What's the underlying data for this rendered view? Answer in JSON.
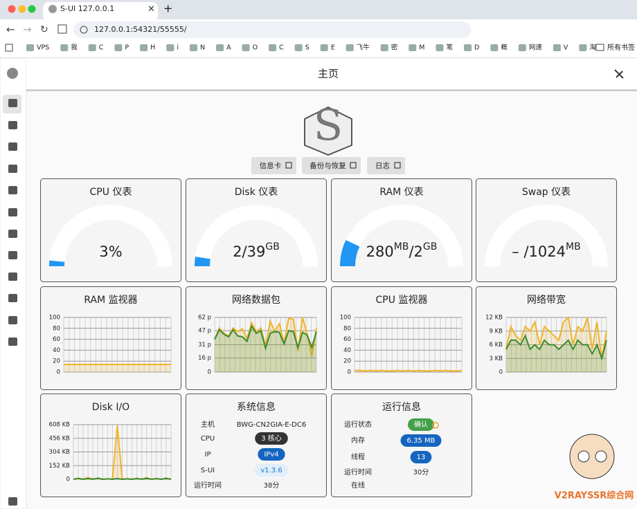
{
  "browser": {
    "tab_title": "S-UI 127.0.0.1",
    "url": "127.0.0.1:54321/55555/",
    "bookmarks": [
      "VPS",
      "我",
      "C",
      "P",
      "H",
      "i",
      "N",
      "A",
      "O",
      "C",
      "S",
      "E",
      "飞牛",
      "密",
      "M",
      "笔",
      "D",
      "概",
      "网速",
      "V",
      "淘"
    ],
    "all_bookmarks": "所有书签"
  },
  "header": {
    "title": "主页"
  },
  "buttons": [
    "信息卡",
    "备份与恢复",
    "日志"
  ],
  "gauges": [
    {
      "title": "CPU 仪表",
      "parts": [
        {
          "text": "3%"
        }
      ],
      "fill": 3
    },
    {
      "title": "Disk 仪表",
      "parts": [
        {
          "text": "2/39"
        },
        {
          "sup": "GB"
        }
      ],
      "fill": 5
    },
    {
      "title": "RAM 仪表",
      "parts": [
        {
          "text": "280"
        },
        {
          "sup": "MB"
        },
        {
          "text": "/2"
        },
        {
          "sup": "GB"
        }
      ],
      "fill": 14
    },
    {
      "title": "Swap 仪表",
      "parts": [
        {
          "text": "– /1024"
        },
        {
          "sup": "MB"
        }
      ],
      "fill": 0
    }
  ],
  "chart_data": [
    {
      "type": "line",
      "title": "RAM 监视器",
      "ylim": [
        0,
        100
      ],
      "yticks": [
        0,
        20,
        40,
        60,
        80,
        100
      ],
      "grid": true,
      "series": [
        {
          "color": "#f0b429",
          "values": [
            14,
            14,
            14,
            14,
            14,
            14,
            14,
            14,
            14,
            14,
            14,
            14,
            14,
            14,
            14,
            14,
            14,
            14,
            14,
            14,
            14
          ]
        }
      ]
    },
    {
      "type": "line",
      "title": "网络数据包",
      "ylim": [
        0,
        62
      ],
      "yticks": [
        0,
        {
          "value": 16,
          "label": "16 p"
        },
        {
          "value": 31,
          "label": "31 p"
        },
        {
          "value": 47,
          "label": "47 p"
        },
        {
          "value": 62,
          "label": "62 p"
        }
      ],
      "grid": true,
      "series": [
        {
          "color": "#f0b429",
          "values": [
            37,
            50,
            44,
            41,
            50,
            46,
            49,
            38,
            56,
            46,
            50,
            29,
            58,
            46,
            55,
            33,
            61,
            60,
            24,
            62,
            43,
            18,
            50
          ]
        },
        {
          "color": "#3a8a2e",
          "values": [
            37,
            48,
            43,
            40,
            48,
            41,
            40,
            35,
            52,
            44,
            47,
            27,
            44,
            46,
            45,
            32,
            47,
            46,
            28,
            45,
            42,
            28,
            46
          ]
        }
      ]
    },
    {
      "type": "line",
      "title": "CPU 监视器",
      "ylim": [
        0,
        100
      ],
      "yticks": [
        0,
        20,
        40,
        60,
        80,
        100
      ],
      "grid": true,
      "series": [
        {
          "color": "#f0b429",
          "values": [
            3,
            3,
            2,
            3,
            2,
            3,
            2,
            2,
            3,
            2,
            3,
            2,
            3,
            2,
            2,
            3,
            2,
            3,
            2,
            2,
            3
          ]
        }
      ]
    },
    {
      "type": "line",
      "title": "网络带宽",
      "ylim": [
        0,
        12
      ],
      "yticks": [
        0,
        {
          "value": 3,
          "label": "3 KB"
        },
        {
          "value": 6,
          "label": "6 KB"
        },
        {
          "value": 9,
          "label": "9 KB"
        },
        {
          "value": 12,
          "label": "12 KB"
        }
      ],
      "grid": true,
      "series": [
        {
          "color": "#f0b429",
          "values": [
            5,
            10,
            8,
            7,
            10,
            9,
            11,
            6,
            10,
            9,
            8,
            7,
            11,
            12,
            6,
            10,
            9,
            12,
            5,
            11,
            3,
            9
          ]
        },
        {
          "color": "#3a8a2e",
          "values": [
            5,
            7,
            7,
            6,
            8,
            5,
            6,
            5,
            7,
            6,
            6,
            5,
            6,
            7,
            5,
            7,
            6,
            6,
            4,
            6,
            3,
            7
          ]
        }
      ]
    },
    {
      "type": "line",
      "title": "Disk I/O",
      "ylim": [
        0,
        608
      ],
      "yticks": [
        0,
        {
          "value": 152,
          "label": "152 KB"
        },
        {
          "value": 304,
          "label": "304 KB"
        },
        {
          "value": 456,
          "label": "456 KB"
        },
        {
          "value": 608,
          "label": "608 KB"
        }
      ],
      "grid": true,
      "series": [
        {
          "color": "#f0b429",
          "values": [
            0,
            5,
            0,
            20,
            0,
            8,
            0,
            5,
            0,
            600,
            0,
            5,
            0,
            10,
            0,
            18,
            0,
            8,
            0,
            12,
            0
          ]
        },
        {
          "color": "#3a8a2e",
          "values": [
            0,
            10,
            0,
            8,
            0,
            12,
            0,
            5,
            0,
            8,
            0,
            5,
            0,
            8,
            0,
            10,
            0,
            8,
            0,
            10,
            0
          ]
        }
      ]
    }
  ],
  "system_info": {
    "title": "系统信息",
    "rows": [
      [
        "主机",
        "BWG-CN2GIA-E-DC6"
      ],
      [
        "CPU",
        "3 核心"
      ],
      [
        "IP",
        "IPv4"
      ],
      [
        "S-UI",
        "v1.3.6"
      ],
      [
        "运行时间",
        "38分"
      ]
    ]
  },
  "run_info": {
    "title": "运行信息",
    "rows": [
      [
        "运行状态",
        "确认"
      ],
      [
        "内存",
        "6.35 MB"
      ],
      [
        "线程",
        "13"
      ],
      [
        "运行时间",
        "30分"
      ],
      [
        "在线"
      ]
    ]
  },
  "watermark": "V2RAYSSR综合网"
}
